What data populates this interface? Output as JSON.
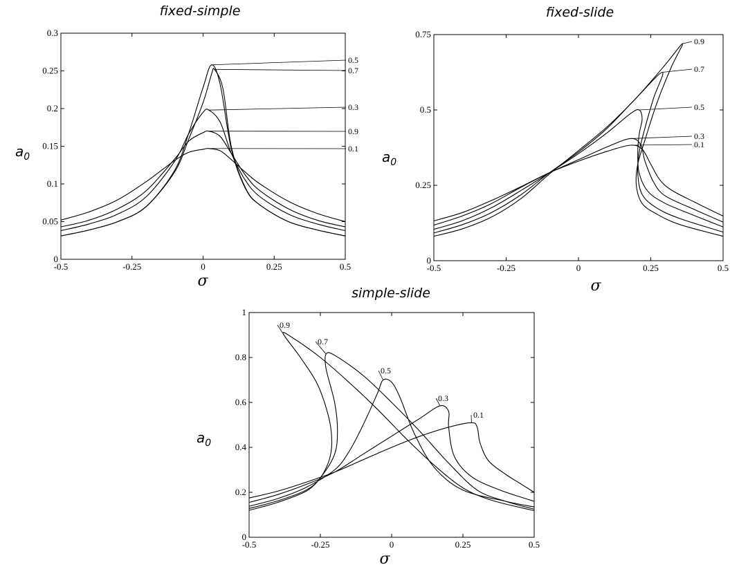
{
  "chart_data": [
    {
      "type": "line",
      "title": "fixed-simple",
      "xlabel": "σ",
      "ylabel": "a",
      "ylabel_sub": "0",
      "xlim": [
        -0.5,
        0.5
      ],
      "ylim": [
        0,
        0.3
      ],
      "x_ticks": [
        "-0.5",
        "-0.25",
        "0",
        "0.25",
        "0.5"
      ],
      "y_ticks": [
        "0",
        "0.05",
        "0.1",
        "0.15",
        "0.2",
        "0.25",
        "0.3"
      ],
      "grid": false,
      "series": [
        {
          "name": "0.5",
          "peak": [
            0.03,
            0.258
          ],
          "points": [
            [
              -0.5,
              0.031
            ],
            [
              -0.4,
              0.039
            ],
            [
              -0.3,
              0.05
            ],
            [
              -0.2,
              0.07
            ],
            [
              -0.1,
              0.118
            ],
            [
              -0.05,
              0.168
            ],
            [
              0.0,
              0.228
            ],
            [
              0.03,
              0.258
            ],
            [
              0.06,
              0.232
            ],
            [
              0.1,
              0.145
            ],
            [
              0.15,
              0.093
            ],
            [
              0.2,
              0.072
            ],
            [
              0.3,
              0.05
            ],
            [
              0.4,
              0.039
            ],
            [
              0.5,
              0.031
            ]
          ]
        },
        {
          "name": "0.7",
          "peak": [
            0.04,
            0.252
          ],
          "points": [
            [
              -0.5,
              0.031
            ],
            [
              -0.4,
              0.039
            ],
            [
              -0.3,
              0.05
            ],
            [
              -0.2,
              0.07
            ],
            [
              -0.1,
              0.116
            ],
            [
              -0.05,
              0.16
            ],
            [
              0.0,
              0.208
            ],
            [
              0.03,
              0.246
            ],
            [
              0.04,
              0.252
            ],
            [
              0.07,
              0.226
            ],
            [
              0.1,
              0.148
            ],
            [
              0.15,
              0.094
            ],
            [
              0.2,
              0.072
            ],
            [
              0.3,
              0.05
            ],
            [
              0.4,
              0.039
            ],
            [
              0.5,
              0.031
            ]
          ]
        },
        {
          "name": "0.3",
          "peak": [
            0.02,
            0.198
          ],
          "points": [
            [
              -0.5,
              0.038
            ],
            [
              -0.4,
              0.047
            ],
            [
              -0.3,
              0.06
            ],
            [
              -0.2,
              0.083
            ],
            [
              -0.1,
              0.13
            ],
            [
              -0.05,
              0.167
            ],
            [
              0.0,
              0.195
            ],
            [
              0.02,
              0.198
            ],
            [
              0.06,
              0.182
            ],
            [
              0.1,
              0.14
            ],
            [
              0.15,
              0.104
            ],
            [
              0.2,
              0.083
            ],
            [
              0.3,
              0.06
            ],
            [
              0.4,
              0.047
            ],
            [
              0.5,
              0.038
            ]
          ]
        },
        {
          "name": "0.9",
          "peak": [
            0.02,
            0.17
          ],
          "points": [
            [
              -0.5,
              0.043
            ],
            [
              -0.4,
              0.052
            ],
            [
              -0.3,
              0.067
            ],
            [
              -0.2,
              0.091
            ],
            [
              -0.1,
              0.133
            ],
            [
              -0.05,
              0.157
            ],
            [
              0.0,
              0.168
            ],
            [
              0.02,
              0.17
            ],
            [
              0.06,
              0.163
            ],
            [
              0.1,
              0.14
            ],
            [
              0.15,
              0.111
            ],
            [
              0.2,
              0.091
            ],
            [
              0.3,
              0.067
            ],
            [
              0.4,
              0.052
            ],
            [
              0.5,
              0.043
            ]
          ]
        },
        {
          "name": "0.1",
          "peak": [
            0.02,
            0.147
          ],
          "points": [
            [
              -0.5,
              0.052
            ],
            [
              -0.4,
              0.063
            ],
            [
              -0.3,
              0.079
            ],
            [
              -0.2,
              0.103
            ],
            [
              -0.1,
              0.131
            ],
            [
              -0.05,
              0.142
            ],
            [
              0.0,
              0.146
            ],
            [
              0.02,
              0.147
            ],
            [
              0.06,
              0.144
            ],
            [
              0.1,
              0.132
            ],
            [
              0.15,
              0.115
            ],
            [
              0.2,
              0.1
            ],
            [
              0.3,
              0.077
            ],
            [
              0.4,
              0.061
            ],
            [
              0.5,
              0.05
            ]
          ]
        }
      ]
    },
    {
      "type": "line",
      "title": "fixed-slide",
      "xlabel": "σ",
      "ylabel": "a",
      "ylabel_sub": "0",
      "xlim": [
        -0.5,
        0.5
      ],
      "ylim": [
        0,
        0.75
      ],
      "x_ticks": [
        "-0.5",
        "-0.25",
        "0",
        "0.25",
        "0.5"
      ],
      "y_ticks": [
        "0",
        "0.25",
        "0.5",
        "0.75"
      ],
      "grid": false,
      "series": [
        {
          "name": "0.9",
          "peak": [
            0.36,
            0.72
          ],
          "points": [
            [
              -0.5,
              0.081
            ],
            [
              -0.4,
              0.106
            ],
            [
              -0.3,
              0.145
            ],
            [
              -0.2,
              0.205
            ],
            [
              -0.1,
              0.288
            ],
            [
              0.0,
              0.365
            ],
            [
              0.1,
              0.445
            ],
            [
              0.2,
              0.54
            ],
            [
              0.3,
              0.65
            ],
            [
              0.36,
              0.72
            ],
            [
              0.32,
              0.64
            ],
            [
              0.27,
              0.52
            ],
            [
              0.23,
              0.4
            ],
            [
              0.205,
              0.32
            ],
            [
              0.2,
              0.25
            ],
            [
              0.22,
              0.19
            ],
            [
              0.27,
              0.155
            ],
            [
              0.35,
              0.12
            ],
            [
              0.5,
              0.081
            ]
          ]
        },
        {
          "name": "0.7",
          "peak": [
            0.29,
            0.625
          ],
          "points": [
            [
              -0.5,
              0.092
            ],
            [
              -0.4,
              0.12
            ],
            [
              -0.3,
              0.16
            ],
            [
              -0.2,
              0.218
            ],
            [
              -0.1,
              0.292
            ],
            [
              0.0,
              0.36
            ],
            [
              0.1,
              0.44
            ],
            [
              0.2,
              0.54
            ],
            [
              0.29,
              0.625
            ],
            [
              0.26,
              0.54
            ],
            [
              0.23,
              0.44
            ],
            [
              0.21,
              0.36
            ],
            [
              0.205,
              0.29
            ],
            [
              0.22,
              0.22
            ],
            [
              0.27,
              0.175
            ],
            [
              0.35,
              0.14
            ],
            [
              0.5,
              0.095
            ]
          ]
        },
        {
          "name": "0.5",
          "peak": [
            0.21,
            0.5
          ],
          "points": [
            [
              -0.5,
              0.104
            ],
            [
              -0.4,
              0.133
            ],
            [
              -0.3,
              0.176
            ],
            [
              -0.2,
              0.232
            ],
            [
              -0.1,
              0.292
            ],
            [
              0.0,
              0.355
            ],
            [
              0.1,
              0.425
            ],
            [
              0.18,
              0.488
            ],
            [
              0.21,
              0.5
            ],
            [
              0.22,
              0.47
            ],
            [
              0.21,
              0.42
            ],
            [
              0.205,
              0.36
            ],
            [
              0.21,
              0.29
            ],
            [
              0.24,
              0.23
            ],
            [
              0.3,
              0.19
            ],
            [
              0.4,
              0.15
            ],
            [
              0.5,
              0.112
            ]
          ]
        },
        {
          "name": "0.3",
          "peak": [
            0.18,
            0.405
          ],
          "points": [
            [
              -0.5,
              0.118
            ],
            [
              -0.4,
              0.149
            ],
            [
              -0.3,
              0.19
            ],
            [
              -0.2,
              0.243
            ],
            [
              -0.1,
              0.292
            ],
            [
              0.0,
              0.335
            ],
            [
              0.1,
              0.378
            ],
            [
              0.18,
              0.405
            ],
            [
              0.215,
              0.385
            ],
            [
              0.23,
              0.33
            ],
            [
              0.26,
              0.26
            ],
            [
              0.3,
              0.215
            ],
            [
              0.4,
              0.17
            ],
            [
              0.5,
              0.128
            ]
          ]
        },
        {
          "name": "0.1",
          "peak": [
            0.18,
            0.383
          ],
          "points": [
            [
              -0.5,
              0.132
            ],
            [
              -0.4,
              0.16
            ],
            [
              -0.3,
              0.2
            ],
            [
              -0.2,
              0.245
            ],
            [
              -0.1,
              0.292
            ],
            [
              0.0,
              0.33
            ],
            [
              0.1,
              0.363
            ],
            [
              0.18,
              0.383
            ],
            [
              0.22,
              0.37
            ],
            [
              0.25,
              0.32
            ],
            [
              0.28,
              0.27
            ],
            [
              0.32,
              0.235
            ],
            [
              0.4,
              0.195
            ],
            [
              0.5,
              0.148
            ]
          ]
        }
      ]
    },
    {
      "type": "line",
      "title": "simple-slide",
      "xlabel": "σ",
      "ylabel": "a",
      "ylabel_sub": "0",
      "xlim": [
        -0.5,
        0.5
      ],
      "ylim": [
        0,
        1
      ],
      "x_ticks": [
        "-0.5",
        "-0.25",
        "0",
        "0.25",
        "0.5"
      ],
      "y_ticks": [
        "0",
        "0.2",
        "0.4",
        "0.6",
        "0.8",
        "1"
      ],
      "grid": false,
      "series": [
        {
          "name": "0.9",
          "peak": [
            -0.38,
            0.905
          ],
          "points": [
            [
              -0.5,
              0.12
            ],
            [
              -0.4,
              0.155
            ],
            [
              -0.3,
              0.205
            ],
            [
              -0.25,
              0.265
            ],
            [
              -0.22,
              0.34
            ],
            [
              -0.21,
              0.42
            ],
            [
              -0.22,
              0.53
            ],
            [
              -0.26,
              0.68
            ],
            [
              -0.32,
              0.8
            ],
            [
              -0.38,
              0.905
            ],
            [
              -0.35,
              0.89
            ],
            [
              -0.25,
              0.8
            ],
            [
              -0.15,
              0.69
            ],
            [
              -0.05,
              0.57
            ],
            [
              0.05,
              0.44
            ],
            [
              0.15,
              0.32
            ],
            [
              0.25,
              0.22
            ],
            [
              0.35,
              0.165
            ],
            [
              0.5,
              0.118
            ]
          ]
        },
        {
          "name": "0.7",
          "peak": [
            -0.23,
            0.815
          ],
          "points": [
            [
              -0.5,
              0.128
            ],
            [
              -0.4,
              0.162
            ],
            [
              -0.3,
              0.21
            ],
            [
              -0.25,
              0.265
            ],
            [
              -0.2,
              0.37
            ],
            [
              -0.19,
              0.48
            ],
            [
              -0.2,
              0.6
            ],
            [
              -0.23,
              0.75
            ],
            [
              -0.23,
              0.815
            ],
            [
              -0.2,
              0.81
            ],
            [
              -0.1,
              0.72
            ],
            [
              0.0,
              0.6
            ],
            [
              0.1,
              0.47
            ],
            [
              0.2,
              0.33
            ],
            [
              0.3,
              0.21
            ],
            [
              0.4,
              0.16
            ],
            [
              0.5,
              0.125
            ]
          ]
        },
        {
          "name": "0.5",
          "peak": [
            -0.03,
            0.7
          ],
          "points": [
            [
              -0.5,
              0.138
            ],
            [
              -0.4,
              0.172
            ],
            [
              -0.3,
              0.222
            ],
            [
              -0.2,
              0.3
            ],
            [
              -0.15,
              0.38
            ],
            [
              -0.1,
              0.5
            ],
            [
              -0.05,
              0.64
            ],
            [
              -0.03,
              0.7
            ],
            [
              0.0,
              0.69
            ],
            [
              0.03,
              0.62
            ],
            [
              0.08,
              0.46
            ],
            [
              0.15,
              0.31
            ],
            [
              0.25,
              0.21
            ],
            [
              0.4,
              0.16
            ],
            [
              0.5,
              0.135
            ]
          ]
        },
        {
          "name": "0.3",
          "peak": [
            0.17,
            0.585
          ],
          "points": [
            [
              -0.5,
              0.155
            ],
            [
              -0.4,
              0.19
            ],
            [
              -0.3,
              0.235
            ],
            [
              -0.2,
              0.29
            ],
            [
              -0.1,
              0.37
            ],
            [
              0.0,
              0.45
            ],
            [
              0.1,
              0.53
            ],
            [
              0.17,
              0.585
            ],
            [
              0.2,
              0.56
            ],
            [
              0.2,
              0.49
            ],
            [
              0.22,
              0.36
            ],
            [
              0.28,
              0.27
            ],
            [
              0.38,
              0.21
            ],
            [
              0.5,
              0.16
            ]
          ]
        },
        {
          "name": "0.1",
          "peak": [
            0.28,
            0.51
          ],
          "points": [
            [
              -0.5,
              0.175
            ],
            [
              -0.4,
              0.205
            ],
            [
              -0.3,
              0.245
            ],
            [
              -0.2,
              0.29
            ],
            [
              -0.1,
              0.345
            ],
            [
              0.0,
              0.4
            ],
            [
              0.1,
              0.45
            ],
            [
              0.2,
              0.49
            ],
            [
              0.28,
              0.51
            ],
            [
              0.3,
              0.49
            ],
            [
              0.31,
              0.42
            ],
            [
              0.34,
              0.34
            ],
            [
              0.4,
              0.28
            ],
            [
              0.45,
              0.24
            ],
            [
              0.5,
              0.2
            ]
          ]
        }
      ]
    }
  ]
}
